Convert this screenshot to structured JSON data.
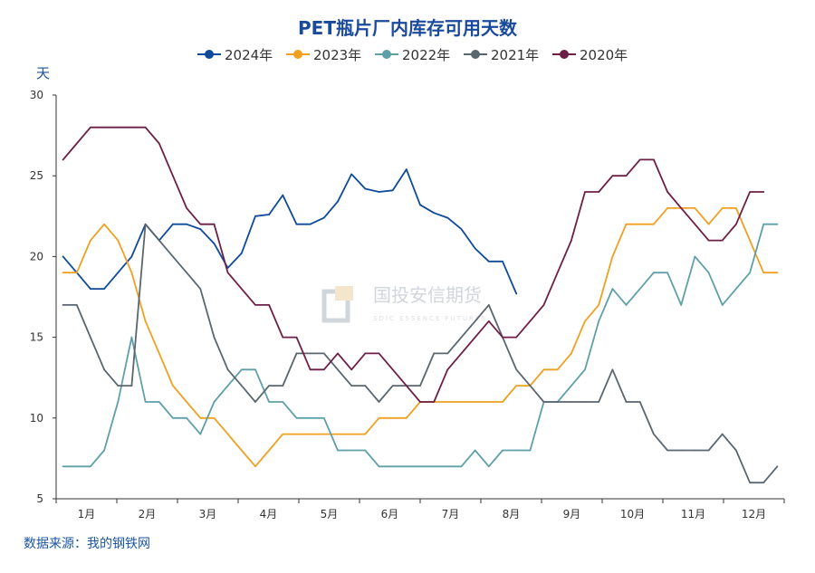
{
  "colors": {
    "title": "#1a4a9c",
    "accent": "#1a56a4",
    "axis": "#333333",
    "watermark_logo": "#c9ced6"
  },
  "watermark": {
    "text": "国投安信期货",
    "subtext": "SDIC ESSENCE FUTURES"
  },
  "source": "数据来源：我的钢铁网",
  "chart_data": {
    "type": "line",
    "title": "PET瓶片厂内库存可用天数",
    "ylabel": "天",
    "xlabel": "",
    "ylim": [
      5,
      30
    ],
    "yticks": [
      5,
      10,
      15,
      20,
      25,
      30
    ],
    "xlim": [
      0,
      53
    ],
    "grid": false,
    "legend_position": "top",
    "months": [
      "1月",
      "2月",
      "3月",
      "4月",
      "5月",
      "6月",
      "7月",
      "8月",
      "9月",
      "10月",
      "11月",
      "12月"
    ],
    "series": [
      {
        "name": "2024年",
        "color": "#0d4a9c",
        "x": [
          0.5,
          1.5,
          2.5,
          3.5,
          4.5,
          5.5,
          6.5,
          7.5,
          8.5,
          9.5,
          10.5,
          11.5,
          12.5,
          13.5,
          14.5,
          15.5,
          16.5,
          17.5,
          18.5,
          19.5,
          20.5,
          21.5,
          22.5,
          23.5,
          24.5,
          25.5,
          26.5,
          27.5,
          28.5,
          29.5,
          30.5,
          31.5,
          32.5,
          33.5
        ],
        "values": [
          20,
          19,
          18,
          18,
          19,
          20,
          22,
          21,
          22,
          22,
          21.7,
          20.8,
          19.3,
          20.2,
          22.5,
          22.6,
          23.8,
          22,
          22,
          22.4,
          23.4,
          25.1,
          24.2,
          24,
          24.1,
          25.4,
          23.2,
          22.7,
          22.4,
          21.7,
          20.5,
          19.7,
          19.7,
          17.7
        ]
      },
      {
        "name": "2023年",
        "color": "#f0a020",
        "x": [
          0.5,
          1.5,
          2.5,
          3.5,
          4.5,
          5.5,
          6.5,
          7.5,
          8.5,
          9.5,
          10.5,
          11.5,
          12.5,
          13.5,
          14.5,
          15.5,
          16.5,
          17.5,
          18.5,
          19.5,
          20.5,
          21.5,
          22.5,
          23.5,
          24.5,
          25.5,
          26.5,
          27.5,
          28.5,
          29.5,
          30.5,
          31.5,
          32.5,
          33.5,
          34.5,
          35.5,
          36.5,
          37.5,
          38.5,
          39.5,
          40.5,
          41.5,
          42.5,
          43.5,
          44.5,
          45.5,
          46.5,
          47.5,
          48.5,
          49.5,
          50.5,
          51.5,
          52.5
        ],
        "values": [
          19,
          19,
          21,
          22,
          21,
          19,
          16,
          14,
          12,
          11,
          10,
          10,
          9,
          8,
          7,
          8,
          9,
          9,
          9,
          9,
          9,
          9,
          9,
          10,
          10,
          10,
          11,
          11,
          11,
          11,
          11,
          11,
          11,
          12,
          12,
          13,
          13,
          14,
          16,
          17,
          20,
          22,
          22,
          22,
          23,
          23,
          23,
          22,
          23,
          23,
          21,
          19,
          19
        ]
      },
      {
        "name": "2022年",
        "color": "#5ea0a8",
        "x": [
          0.5,
          1.5,
          2.5,
          3.5,
          4.5,
          5.5,
          6.5,
          7.5,
          8.5,
          9.5,
          10.5,
          11.5,
          12.5,
          13.5,
          14.5,
          15.5,
          16.5,
          17.5,
          18.5,
          19.5,
          20.5,
          21.5,
          22.5,
          23.5,
          24.5,
          25.5,
          26.5,
          27.5,
          28.5,
          29.5,
          30.5,
          31.5,
          32.5,
          33.5,
          34.5,
          35.5,
          36.5,
          37.5,
          38.5,
          39.5,
          40.5,
          41.5,
          42.5,
          43.5,
          44.5,
          45.5,
          46.5,
          47.5,
          48.5,
          49.5,
          50.5,
          51.5,
          52.5
        ],
        "values": [
          7,
          7,
          7,
          8,
          11,
          15,
          11,
          11,
          10,
          10,
          9,
          11,
          12,
          13,
          13,
          11,
          11,
          10,
          10,
          10,
          8,
          8,
          8,
          7,
          7,
          7,
          7,
          7,
          7,
          7,
          8,
          7,
          8,
          8,
          8,
          11,
          11,
          12,
          13,
          16,
          18,
          17,
          18,
          19,
          19,
          17,
          20,
          19,
          17,
          18,
          19,
          22,
          22
        ]
      },
      {
        "name": "2021年",
        "color": "#5a6670",
        "x": [
          0.5,
          1.5,
          2.5,
          3.5,
          4.5,
          5.5,
          6.5,
          7.5,
          8.5,
          9.5,
          10.5,
          11.5,
          12.5,
          13.5,
          14.5,
          15.5,
          16.5,
          17.5,
          18.5,
          19.5,
          20.5,
          21.5,
          22.5,
          23.5,
          24.5,
          25.5,
          26.5,
          27.5,
          28.5,
          29.5,
          30.5,
          31.5,
          32.5,
          33.5,
          34.5,
          35.5,
          36.5,
          37.5,
          38.5,
          39.5,
          40.5,
          41.5,
          42.5,
          43.5,
          44.5,
          45.5,
          46.5,
          47.5,
          48.5,
          49.5,
          50.5,
          51.5,
          52.5
        ],
        "values": [
          17,
          17,
          15,
          13,
          12,
          12,
          22,
          21,
          20,
          19,
          18,
          15,
          13,
          12,
          11,
          12,
          12,
          14,
          14,
          14,
          13,
          12,
          12,
          11,
          12,
          12,
          12,
          14,
          14,
          15,
          16,
          17,
          15,
          13,
          12,
          11,
          11,
          11,
          11,
          11,
          13,
          11,
          11,
          9,
          8,
          8,
          8,
          8,
          9,
          8,
          6,
          6,
          7
        ]
      },
      {
        "name": "2020年",
        "color": "#6e1f45",
        "x": [
          0.5,
          1.5,
          2.5,
          3.5,
          4.5,
          5.5,
          6.5,
          7.5,
          8.5,
          9.5,
          10.5,
          11.5,
          12.5,
          13.5,
          14.5,
          15.5,
          16.5,
          17.5,
          18.5,
          19.5,
          20.5,
          21.5,
          22.5,
          23.5,
          24.5,
          25.5,
          26.5,
          27.5,
          28.5,
          29.5,
          30.5,
          31.5,
          32.5,
          33.5,
          34.5,
          35.5,
          36.5,
          37.5,
          38.5,
          39.5,
          40.5,
          41.5,
          42.5,
          43.5,
          44.5,
          45.5,
          46.5,
          47.5,
          48.5,
          49.5,
          50.5,
          51.5
        ],
        "values": [
          26,
          27,
          28,
          28,
          28,
          28,
          28,
          27,
          25,
          23,
          22,
          22,
          19,
          18,
          17,
          17,
          15,
          15,
          13,
          13,
          14,
          13,
          14,
          14,
          13,
          12,
          11,
          11,
          13,
          14,
          15,
          16,
          15,
          15,
          16,
          17,
          19,
          21,
          24,
          24,
          25,
          25,
          26,
          26,
          24,
          23,
          22,
          21,
          21,
          22,
          24,
          24
        ]
      }
    ]
  }
}
